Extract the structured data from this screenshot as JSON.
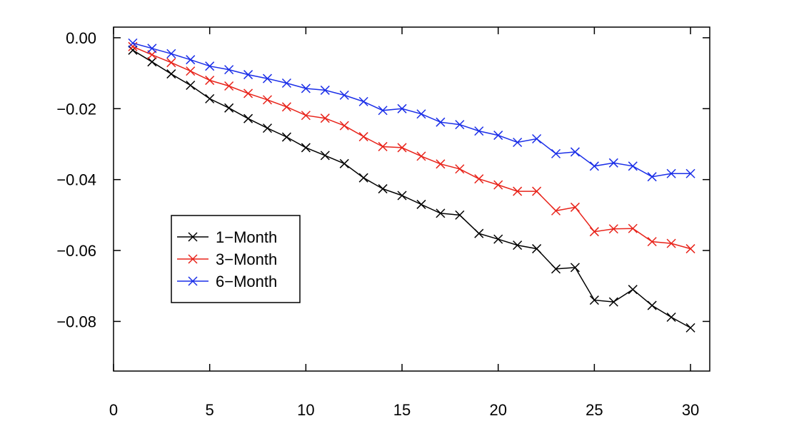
{
  "chart_data": {
    "type": "line",
    "title": "",
    "xlabel": "",
    "ylabel": "",
    "xlim": [
      0,
      31
    ],
    "ylim": [
      -0.094,
      0.003
    ],
    "xticks": [
      0,
      5,
      10,
      15,
      20,
      25,
      30
    ],
    "xtick_labels": [
      "0",
      "5",
      "10",
      "15",
      "20",
      "25",
      "30"
    ],
    "yticks": [
      0.0,
      -0.02,
      -0.04,
      -0.06,
      -0.08
    ],
    "ytick_labels": [
      "0.00",
      "−0.02",
      "−0.04",
      "−0.06",
      "−0.08"
    ],
    "grid": false,
    "legend_position": "center-left",
    "x": [
      1,
      2,
      3,
      4,
      5,
      6,
      7,
      8,
      9,
      10,
      11,
      12,
      13,
      14,
      15,
      16,
      17,
      18,
      19,
      20,
      21,
      22,
      23,
      24,
      25,
      26,
      27,
      28,
      29,
      30
    ],
    "series": [
      {
        "name": "1−Month",
        "color": "#000000",
        "values": [
          -0.0035,
          -0.0068,
          -0.0102,
          -0.0134,
          -0.0172,
          -0.0198,
          -0.0228,
          -0.0255,
          -0.028,
          -0.031,
          -0.0332,
          -0.0355,
          -0.0395,
          -0.0426,
          -0.0445,
          -0.047,
          -0.0495,
          -0.05,
          -0.0552,
          -0.0568,
          -0.0585,
          -0.0595,
          -0.0652,
          -0.0648,
          -0.074,
          -0.0745,
          -0.071,
          -0.0755,
          -0.0788,
          -0.0818
        ]
      },
      {
        "name": "3−Month",
        "color": "#e8231a",
        "values": [
          -0.0025,
          -0.0048,
          -0.007,
          -0.0094,
          -0.012,
          -0.0136,
          -0.0157,
          -0.0175,
          -0.0195,
          -0.0219,
          -0.0227,
          -0.0248,
          -0.0279,
          -0.0307,
          -0.031,
          -0.0334,
          -0.0356,
          -0.037,
          -0.0398,
          -0.0415,
          -0.0433,
          -0.0433,
          -0.0488,
          -0.0478,
          -0.0547,
          -0.0539,
          -0.0538,
          -0.0575,
          -0.058,
          -0.0595
        ]
      },
      {
        "name": "6−Month",
        "color": "#1a2ee8",
        "values": [
          -0.0015,
          -0.003,
          -0.0045,
          -0.0062,
          -0.008,
          -0.009,
          -0.0104,
          -0.0115,
          -0.0128,
          -0.0143,
          -0.0148,
          -0.0162,
          -0.018,
          -0.0205,
          -0.02,
          -0.0215,
          -0.0238,
          -0.0245,
          -0.0263,
          -0.0275,
          -0.0295,
          -0.0285,
          -0.0327,
          -0.0322,
          -0.0362,
          -0.0353,
          -0.0362,
          -0.0392,
          -0.0383,
          -0.0383
        ]
      }
    ]
  }
}
